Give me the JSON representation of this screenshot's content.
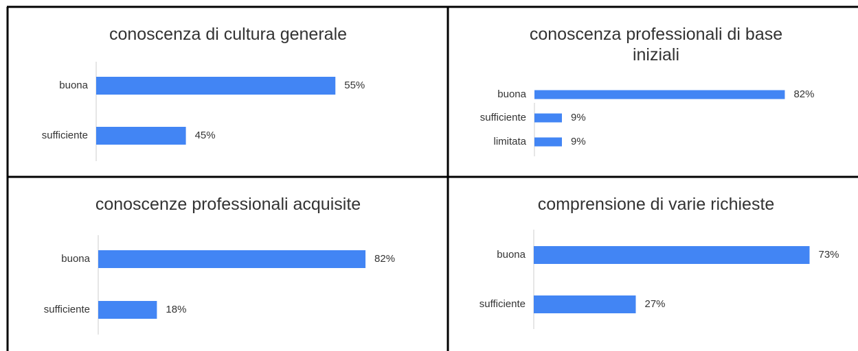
{
  "chart_data": [
    {
      "type": "bar",
      "title": "conoscenza di cultura generale",
      "categories": [
        "buona",
        "sufficiente"
      ],
      "values": [
        55,
        45
      ],
      "value_labels": [
        "55%",
        "45%"
      ],
      "color": "#4285f4",
      "xlim": [
        39,
        56
      ]
    },
    {
      "type": "bar",
      "title": "conoscenza professionali di base iniziali",
      "categories": [
        "buona",
        "sufficiente",
        "limitata"
      ],
      "values": [
        82,
        9,
        9
      ],
      "value_labels": [
        "82%",
        "9%",
        "9%"
      ],
      "color": "#4285f4",
      "xlim": [
        0,
        90
      ]
    },
    {
      "type": "bar",
      "title": "conoscenze professionali acquisite",
      "categories": [
        "buona",
        "sufficiente"
      ],
      "values": [
        82,
        18
      ],
      "value_labels": [
        "82%",
        "18%"
      ],
      "color": "#4285f4",
      "xlim": [
        0,
        90
      ]
    },
    {
      "type": "bar",
      "title": "comprensione di varie richieste",
      "categories": [
        "buona",
        "sufficiente"
      ],
      "values": [
        73,
        27
      ],
      "value_labels": [
        "73%",
        "27%"
      ],
      "color": "#4285f4",
      "xlim": [
        0,
        80
      ]
    }
  ]
}
